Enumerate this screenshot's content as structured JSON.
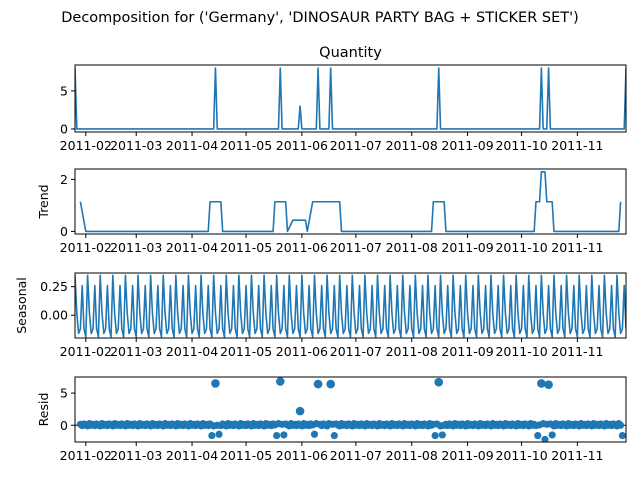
{
  "figure": {
    "suptitle": "Decomposition for ('Germany', 'DINOSAUR PARTY BAG + STICKER SET')",
    "line_color": "#1f77b4"
  },
  "chart_data": [
    {
      "type": "line",
      "title": "Quantity",
      "ylabel": "",
      "x_range": [
        "2011-01-26",
        "2011-11-28"
      ],
      "ylim": [
        -0.4,
        8.4
      ],
      "yticks": [
        0,
        5
      ],
      "xtick_labels": [
        "2011-02",
        "2011-03",
        "2011-04",
        "2011-05",
        "2011-06",
        "2011-07",
        "2011-08",
        "2011-09",
        "2011-10",
        "2011-11"
      ],
      "spikes": [
        {
          "date": "2011-01-26",
          "value": 8
        },
        {
          "date": "2011-04-14",
          "value": 8
        },
        {
          "date": "2011-05-20",
          "value": 8
        },
        {
          "date": "2011-05-31",
          "value": 3
        },
        {
          "date": "2011-06-10",
          "value": 8
        },
        {
          "date": "2011-06-17",
          "value": 8
        },
        {
          "date": "2011-08-16",
          "value": 8
        },
        {
          "date": "2011-10-12",
          "value": 8
        },
        {
          "date": "2011-10-16",
          "value": 8
        },
        {
          "date": "2011-11-28",
          "value": 8
        }
      ],
      "baseline": 0
    },
    {
      "type": "line",
      "title": "",
      "ylabel": "Trend",
      "x_range": [
        "2011-01-26",
        "2011-11-28"
      ],
      "ylim": [
        -0.1,
        2.4
      ],
      "yticks": [
        0,
        2
      ],
      "xtick_labels": [
        "2011-02",
        "2011-03",
        "2011-04",
        "2011-05",
        "2011-06",
        "2011-07",
        "2011-08",
        "2011-09",
        "2011-10",
        "2011-11"
      ],
      "x": [
        "2011-01-29",
        "2011-01-29",
        "2011-02-01",
        "2011-04-10",
        "2011-04-11",
        "2011-04-17",
        "2011-04-18",
        "2011-05-16",
        "2011-05-17",
        "2011-05-23",
        "2011-05-24",
        "2011-05-27",
        "2011-05-28",
        "2011-06-03",
        "2011-06-04",
        "2011-06-07",
        "2011-06-08",
        "2011-06-22",
        "2011-06-23",
        "2011-08-12",
        "2011-08-13",
        "2011-08-19",
        "2011-08-20",
        "2011-10-08",
        "2011-10-09",
        "2011-10-11",
        "2011-10-12",
        "2011-10-14",
        "2011-10-15",
        "2011-10-18",
        "2011-10-19",
        "2011-11-24",
        "2011-11-25"
      ],
      "y": [
        1.14,
        1.14,
        0,
        0,
        1.14,
        1.14,
        0,
        0,
        1.14,
        1.14,
        0,
        0.43,
        0.43,
        0.43,
        0,
        1.14,
        1.14,
        1.14,
        0,
        0,
        1.14,
        1.14,
        0,
        0,
        1.14,
        1.14,
        2.29,
        2.29,
        1.14,
        1.14,
        0,
        0,
        1.14
      ]
    },
    {
      "type": "line",
      "title": "",
      "ylabel": "Seasonal",
      "x_range": [
        "2011-01-26",
        "2011-11-28"
      ],
      "ylim": [
        -0.2,
        0.37
      ],
      "yticks": [
        0.0,
        0.25
      ],
      "ytick_labels": [
        "0.00",
        "0.25"
      ],
      "xtick_labels": [
        "2011-02",
        "2011-03",
        "2011-04",
        "2011-05",
        "2011-06",
        "2011-07",
        "2011-08",
        "2011-09",
        "2011-10",
        "2011-11"
      ],
      "period_days": 7,
      "weekly_pattern": [
        0.35,
        0.02,
        -0.16,
        -0.12,
        0.26,
        -0.12,
        -0.19
      ]
    },
    {
      "type": "scatter",
      "title": "",
      "ylabel": "Resid",
      "x_range": [
        "2011-01-26",
        "2011-11-28"
      ],
      "ylim": [
        -2.6,
        7.5
      ],
      "yticks": [
        0,
        5
      ],
      "xtick_labels": [
        "2011-02",
        "2011-03",
        "2011-04",
        "2011-05",
        "2011-06",
        "2011-07",
        "2011-08",
        "2011-09",
        "2011-10",
        "2011-11"
      ],
      "zero_line": true,
      "outliers": [
        {
          "date": "2011-04-14",
          "value": 6.5
        },
        {
          "date": "2011-05-20",
          "value": 6.8
        },
        {
          "date": "2011-05-31",
          "value": 2.2
        },
        {
          "date": "2011-06-10",
          "value": 6.4
        },
        {
          "date": "2011-06-17",
          "value": 6.4
        },
        {
          "date": "2011-08-16",
          "value": 6.7
        },
        {
          "date": "2011-10-12",
          "value": 6.5
        },
        {
          "date": "2011-10-16",
          "value": 6.3
        }
      ],
      "lows": [
        {
          "date": "2011-04-12",
          "value": -1.6
        },
        {
          "date": "2011-04-16",
          "value": -1.4
        },
        {
          "date": "2011-05-18",
          "value": -1.6
        },
        {
          "date": "2011-05-22",
          "value": -1.5
        },
        {
          "date": "2011-06-08",
          "value": -1.4
        },
        {
          "date": "2011-06-19",
          "value": -1.6
        },
        {
          "date": "2011-08-14",
          "value": -1.6
        },
        {
          "date": "2011-08-18",
          "value": -1.5
        },
        {
          "date": "2011-10-10",
          "value": -1.6
        },
        {
          "date": "2011-10-14",
          "value": -2.2
        },
        {
          "date": "2011-10-18",
          "value": -1.5
        },
        {
          "date": "2011-11-26",
          "value": -1.6
        }
      ]
    }
  ]
}
